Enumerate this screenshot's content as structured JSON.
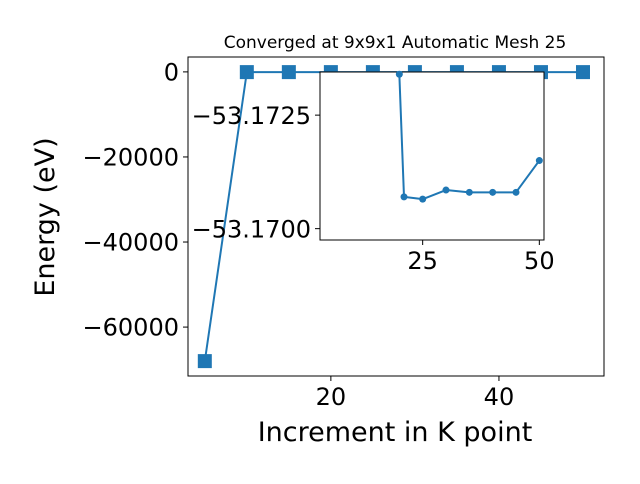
{
  "chart_data": [
    {
      "type": "line",
      "title": "Converged at 9x9x1 Automatic Mesh 25",
      "xlabel": "Increment in K point",
      "ylabel": "Energy (eV)",
      "xlim": [
        3,
        52.5
      ],
      "ylim": [
        -71500,
        3500
      ],
      "x_ticks": [
        20,
        40
      ],
      "x_tick_labels": [
        "20",
        "40"
      ],
      "y_ticks": [
        0,
        -20000,
        -40000,
        -60000
      ],
      "y_tick_labels": [
        "0",
        "−20000",
        "−40000",
        "−60000"
      ],
      "marker": "square",
      "color": "#1f77b4",
      "series": [
        {
          "x": [
            5,
            10,
            15,
            20,
            25,
            30,
            35,
            40,
            45,
            50
          ],
          "y": [
            -68000,
            -53.1734,
            -53.1732,
            -53.1732,
            -53.1727,
            -53.1729,
            -53.1729,
            -53.1729,
            -53.1729,
            -53.1717
          ]
        }
      ]
    },
    {
      "type": "line",
      "role": "inset",
      "xlim": [
        3,
        51
      ],
      "ylim": [
        -53.16975,
        -53.17345
      ],
      "x_ticks": [
        25,
        50
      ],
      "x_tick_labels": [
        "25",
        "50"
      ],
      "y_ticks": [
        -53.1725,
        -53.17
      ],
      "y_tick_labels": [
        "−53.1725",
        "−53.1700"
      ],
      "marker": "circle",
      "color": "#1f77b4",
      "series": [
        {
          "x": [
            20,
            21,
            25,
            30,
            35,
            40,
            45,
            50
          ],
          "y": [
            -53.1734,
            -53.1707,
            -53.17065,
            -53.17085,
            -53.1708,
            -53.1708,
            -53.1708,
            -53.1715
          ]
        }
      ]
    }
  ]
}
